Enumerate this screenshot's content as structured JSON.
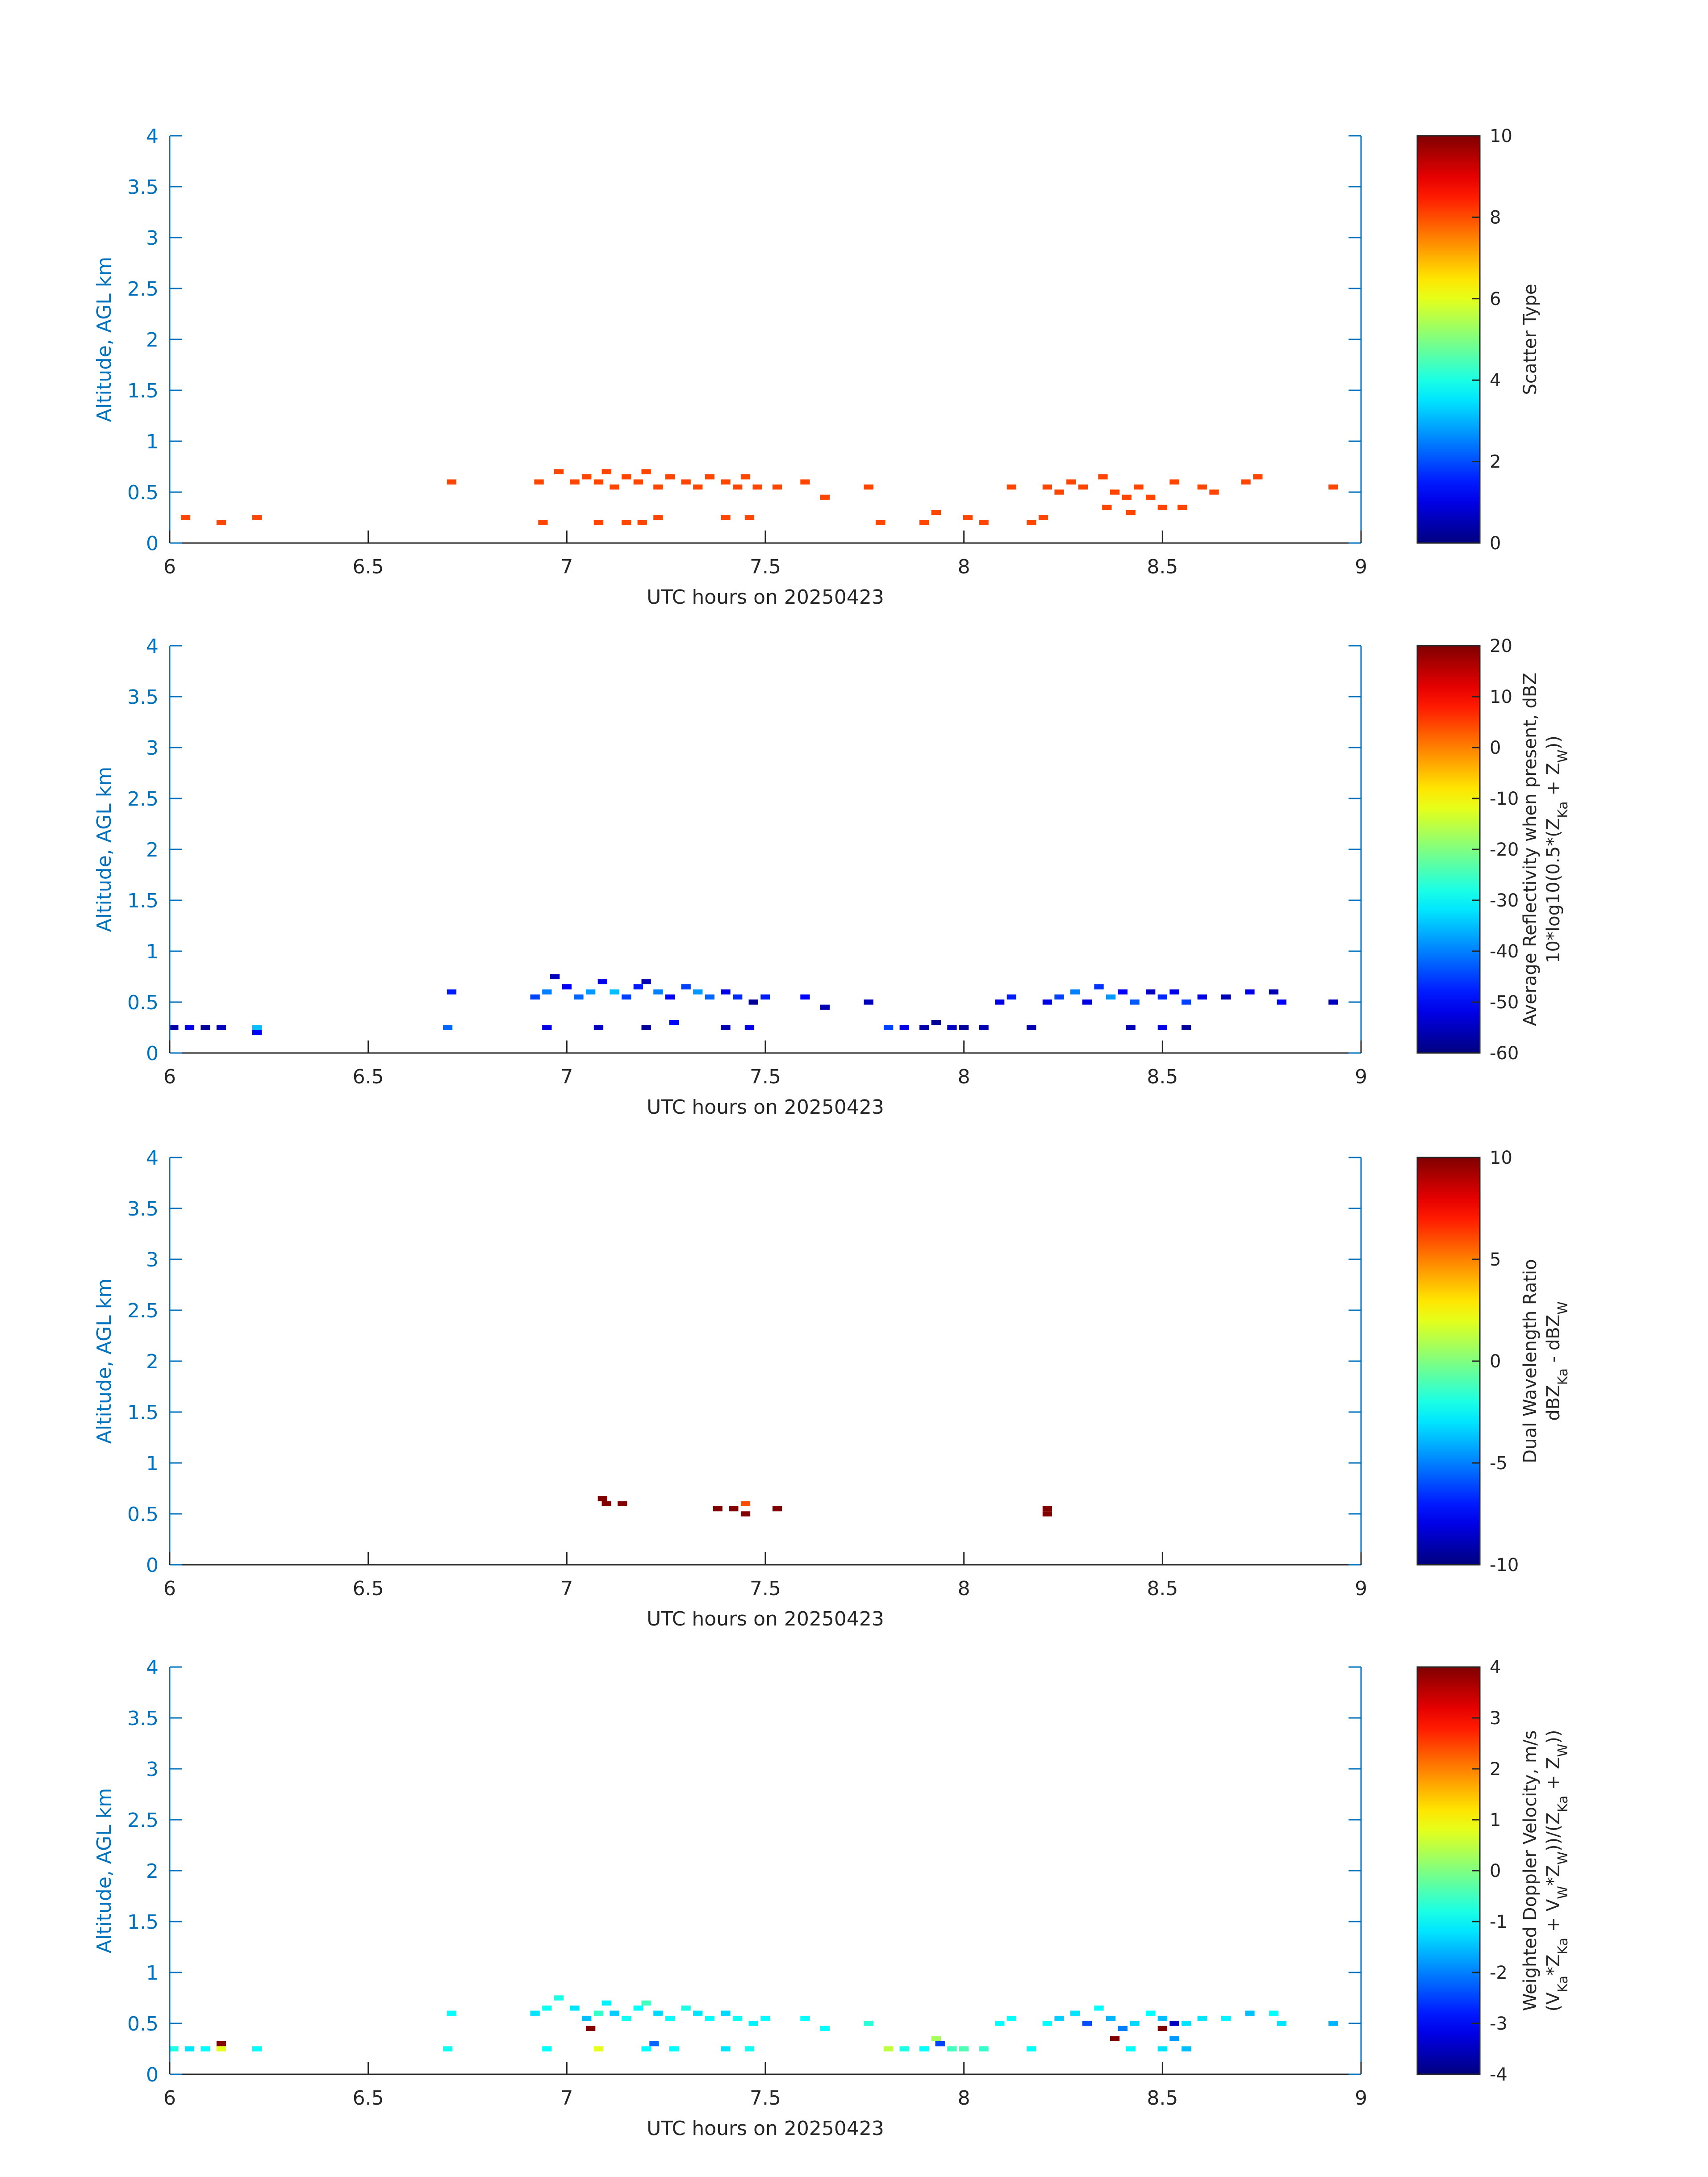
{
  "colors": {
    "axis": "#0072bd",
    "text": "#262626",
    "scatter_cells": "#ff4500"
  },
  "colormap": "jet",
  "chart_data": [
    {
      "type": "heatmap",
      "xlabel": "UTC hours on 20250423",
      "ylabel": "Altitude, AGL km",
      "xlim": [
        6,
        9
      ],
      "ylim": [
        0,
        4
      ],
      "xticks": [
        "6",
        "6.5",
        "7",
        "7.5",
        "8",
        "8.5",
        "9"
      ],
      "yticks": [
        "0",
        "0.5",
        "1",
        "1.5",
        "2",
        "2.5",
        "3",
        "3.5",
        "4"
      ],
      "colorbar": {
        "label_lines": [
          "Scatter Type"
        ],
        "clim": [
          0,
          10
        ],
        "ticks": [
          "0",
          "2",
          "4",
          "6",
          "8",
          "10"
        ]
      },
      "cells": [
        [
          6.04,
          0.25,
          8
        ],
        [
          6.13,
          0.2,
          8
        ],
        [
          6.22,
          0.25,
          8
        ],
        [
          6.71,
          0.6,
          8
        ],
        [
          6.93,
          0.6,
          8
        ],
        [
          6.94,
          0.2,
          8
        ],
        [
          6.98,
          0.7,
          8
        ],
        [
          7.02,
          0.6,
          8
        ],
        [
          7.05,
          0.65,
          8
        ],
        [
          7.08,
          0.6,
          8
        ],
        [
          7.1,
          0.7,
          8
        ],
        [
          7.12,
          0.55,
          8
        ],
        [
          7.15,
          0.65,
          8
        ],
        [
          7.18,
          0.6,
          8
        ],
        [
          7.2,
          0.7,
          8
        ],
        [
          7.23,
          0.55,
          8
        ],
        [
          7.26,
          0.65,
          8
        ],
        [
          7.3,
          0.6,
          8
        ],
        [
          7.33,
          0.55,
          8
        ],
        [
          7.36,
          0.65,
          8
        ],
        [
          7.4,
          0.6,
          8
        ],
        [
          7.43,
          0.55,
          8
        ],
        [
          7.45,
          0.65,
          8
        ],
        [
          7.48,
          0.55,
          8
        ],
        [
          7.08,
          0.2,
          8
        ],
        [
          7.15,
          0.2,
          8
        ],
        [
          7.19,
          0.2,
          8
        ],
        [
          7.23,
          0.25,
          8
        ],
        [
          7.4,
          0.25,
          8
        ],
        [
          7.46,
          0.25,
          8
        ],
        [
          7.53,
          0.55,
          8
        ],
        [
          7.6,
          0.6,
          8
        ],
        [
          7.65,
          0.45,
          8
        ],
        [
          7.76,
          0.55,
          8
        ],
        [
          7.79,
          0.2,
          8
        ],
        [
          7.9,
          0.2,
          8
        ],
        [
          7.93,
          0.3,
          8
        ],
        [
          8.01,
          0.25,
          8
        ],
        [
          8.05,
          0.2,
          8
        ],
        [
          8.12,
          0.55,
          8
        ],
        [
          8.17,
          0.2,
          8
        ],
        [
          8.2,
          0.25,
          8
        ],
        [
          8.21,
          0.55,
          8
        ],
        [
          8.24,
          0.5,
          8
        ],
        [
          8.27,
          0.6,
          8
        ],
        [
          8.3,
          0.55,
          8
        ],
        [
          8.35,
          0.65,
          8
        ],
        [
          8.38,
          0.5,
          8
        ],
        [
          8.41,
          0.45,
          8
        ],
        [
          8.44,
          0.55,
          8
        ],
        [
          8.36,
          0.35,
          8
        ],
        [
          8.42,
          0.3,
          8
        ],
        [
          8.47,
          0.45,
          8
        ],
        [
          8.5,
          0.35,
          8
        ],
        [
          8.53,
          0.6,
          8
        ],
        [
          8.55,
          0.35,
          8
        ],
        [
          8.6,
          0.55,
          8
        ],
        [
          8.63,
          0.5,
          8
        ],
        [
          8.71,
          0.6,
          8
        ],
        [
          8.74,
          0.65,
          8
        ],
        [
          8.93,
          0.55,
          8
        ]
      ]
    },
    {
      "type": "heatmap",
      "xlabel": "UTC hours on 20250423",
      "ylabel": "Altitude, AGL km",
      "xlim": [
        6,
        9
      ],
      "ylim": [
        0,
        4
      ],
      "xticks": [
        "6",
        "6.5",
        "7",
        "7.5",
        "8",
        "8.5",
        "9"
      ],
      "yticks": [
        "0",
        "0.5",
        "1",
        "1.5",
        "2",
        "2.5",
        "3",
        "3.5",
        "4"
      ],
      "colorbar": {
        "label_lines": [
          "Average Reflectivity when present, dBZ",
          "10*log10(0.5*(Z",
          "Ka",
          " + Z",
          "W",
          "))"
        ],
        "clim": [
          -60,
          20
        ],
        "ticks": [
          "-60",
          "-50",
          "-40",
          "-30",
          "-20",
          "-10",
          "0",
          "10",
          "20"
        ]
      },
      "cells": [
        [
          6.01,
          0.25,
          -57
        ],
        [
          6.05,
          0.25,
          -52
        ],
        [
          6.09,
          0.25,
          -58
        ],
        [
          6.13,
          0.25,
          -55
        ],
        [
          6.22,
          0.25,
          -35
        ],
        [
          6.22,
          0.2,
          -50
        ],
        [
          6.71,
          0.6,
          -48
        ],
        [
          6.7,
          0.25,
          -42
        ],
        [
          6.92,
          0.55,
          -45
        ],
        [
          6.95,
          0.6,
          -40
        ],
        [
          6.95,
          0.25,
          -52
        ],
        [
          6.97,
          0.75,
          -55
        ],
        [
          7.0,
          0.65,
          -50
        ],
        [
          7.03,
          0.55,
          -42
        ],
        [
          7.06,
          0.6,
          -38
        ],
        [
          7.09,
          0.7,
          -52
        ],
        [
          7.12,
          0.6,
          -35
        ],
        [
          7.15,
          0.55,
          -45
        ],
        [
          7.18,
          0.65,
          -48
        ],
        [
          7.2,
          0.7,
          -56
        ],
        [
          7.23,
          0.6,
          -40
        ],
        [
          7.26,
          0.55,
          -50
        ],
        [
          7.3,
          0.65,
          -45
        ],
        [
          7.33,
          0.6,
          -38
        ],
        [
          7.36,
          0.55,
          -42
        ],
        [
          7.4,
          0.6,
          -52
        ],
        [
          7.43,
          0.55,
          -47
        ],
        [
          7.47,
          0.5,
          -58
        ],
        [
          7.5,
          0.55,
          -48
        ],
        [
          7.08,
          0.25,
          -55
        ],
        [
          7.2,
          0.25,
          -58
        ],
        [
          7.27,
          0.3,
          -50
        ],
        [
          7.4,
          0.25,
          -56
        ],
        [
          7.46,
          0.25,
          -52
        ],
        [
          7.6,
          0.55,
          -50
        ],
        [
          7.65,
          0.45,
          -56
        ],
        [
          7.76,
          0.5,
          -55
        ],
        [
          7.81,
          0.25,
          -45
        ],
        [
          7.85,
          0.25,
          -52
        ],
        [
          7.9,
          0.25,
          -57
        ],
        [
          7.93,
          0.3,
          -58
        ],
        [
          7.97,
          0.25,
          -55
        ],
        [
          8.0,
          0.25,
          -58
        ],
        [
          8.05,
          0.25,
          -56
        ],
        [
          8.09,
          0.5,
          -52
        ],
        [
          8.12,
          0.55,
          -48
        ],
        [
          8.17,
          0.25,
          -56
        ],
        [
          8.21,
          0.5,
          -52
        ],
        [
          8.24,
          0.55,
          -45
        ],
        [
          8.28,
          0.6,
          -40
        ],
        [
          8.31,
          0.5,
          -52
        ],
        [
          8.34,
          0.65,
          -46
        ],
        [
          8.37,
          0.55,
          -38
        ],
        [
          8.4,
          0.6,
          -50
        ],
        [
          8.43,
          0.5,
          -43
        ],
        [
          8.47,
          0.6,
          -55
        ],
        [
          8.5,
          0.55,
          -47
        ],
        [
          8.53,
          0.6,
          -52
        ],
        [
          8.56,
          0.5,
          -45
        ],
        [
          8.42,
          0.25,
          -56
        ],
        [
          8.5,
          0.25,
          -52
        ],
        [
          8.56,
          0.25,
          -58
        ],
        [
          8.6,
          0.55,
          -52
        ],
        [
          8.66,
          0.55,
          -56
        ],
        [
          8.72,
          0.6,
          -52
        ],
        [
          8.78,
          0.6,
          -56
        ],
        [
          8.8,
          0.5,
          -50
        ],
        [
          8.93,
          0.5,
          -55
        ]
      ]
    },
    {
      "type": "heatmap",
      "xlabel": "UTC hours on 20250423",
      "ylabel": "Altitude, AGL km",
      "xlim": [
        6,
        9
      ],
      "ylim": [
        0,
        4
      ],
      "xticks": [
        "6",
        "6.5",
        "7",
        "7.5",
        "8",
        "8.5",
        "9"
      ],
      "yticks": [
        "0",
        "0.5",
        "1",
        "1.5",
        "2",
        "2.5",
        "3",
        "3.5",
        "4"
      ],
      "colorbar": {
        "label_lines": [
          "Dual Wavelength Ratio",
          "dBZ",
          "Ka",
          " - dBZ",
          "W"
        ],
        "clim": [
          -10,
          10
        ],
        "ticks": [
          "-10",
          "-5",
          "0",
          "5",
          "10"
        ]
      },
      "cells": [
        [
          7.09,
          0.65,
          10
        ],
        [
          7.1,
          0.6,
          10
        ],
        [
          7.14,
          0.6,
          10
        ],
        [
          7.38,
          0.55,
          10
        ],
        [
          7.42,
          0.55,
          10
        ],
        [
          7.45,
          0.6,
          6
        ],
        [
          7.45,
          0.5,
          10
        ],
        [
          7.53,
          0.55,
          10
        ],
        [
          8.21,
          0.55,
          10
        ],
        [
          8.21,
          0.5,
          10
        ]
      ]
    },
    {
      "type": "heatmap",
      "xlabel": "UTC hours on 20250423",
      "ylabel": "Altitude, AGL km",
      "xlim": [
        6,
        9
      ],
      "ylim": [
        0,
        4
      ],
      "xticks": [
        "6",
        "6.5",
        "7",
        "7.5",
        "8",
        "8.5",
        "9"
      ],
      "yticks": [
        "0",
        "0.5",
        "1",
        "1.5",
        "2",
        "2.5",
        "3",
        "3.5",
        "4"
      ],
      "colorbar": {
        "label_lines": [
          "Weighted Doppler Velocity, m/s",
          "(V",
          "Ka",
          "*Z",
          "Ka",
          " + V",
          "W",
          "*Z",
          "W",
          "))/(Z",
          "Ka",
          " + Z",
          "W",
          "))"
        ],
        "clim": [
          -4,
          4
        ],
        "ticks": [
          "-4",
          "-3",
          "-2",
          "-1",
          "0",
          "1",
          "2",
          "3",
          "4"
        ]
      },
      "cells": [
        [
          6.01,
          0.25,
          -0.8
        ],
        [
          6.05,
          0.25,
          -1.2
        ],
        [
          6.09,
          0.25,
          -1
        ],
        [
          6.13,
          0.3,
          4
        ],
        [
          6.13,
          0.25,
          0.8
        ],
        [
          6.22,
          0.25,
          -1
        ],
        [
          6.71,
          0.6,
          -1
        ],
        [
          6.7,
          0.25,
          -0.9
        ],
        [
          6.92,
          0.6,
          -1.2
        ],
        [
          6.95,
          0.65,
          -0.9
        ],
        [
          6.95,
          0.25,
          -1
        ],
        [
          6.98,
          0.75,
          -0.8
        ],
        [
          7.02,
          0.65,
          -1.2
        ],
        [
          7.05,
          0.55,
          -1.5
        ],
        [
          7.06,
          0.45,
          4
        ],
        [
          7.08,
          0.6,
          -0.6
        ],
        [
          7.1,
          0.7,
          -1.1
        ],
        [
          7.12,
          0.6,
          -1.4
        ],
        [
          7.15,
          0.55,
          -0.9
        ],
        [
          7.18,
          0.65,
          -1
        ],
        [
          7.2,
          0.7,
          -0.5
        ],
        [
          7.23,
          0.6,
          -1.3
        ],
        [
          7.26,
          0.55,
          -1
        ],
        [
          7.3,
          0.65,
          -0.8
        ],
        [
          7.33,
          0.6,
          -1.2
        ],
        [
          7.36,
          0.55,
          -1
        ],
        [
          7.4,
          0.6,
          -1.3
        ],
        [
          7.43,
          0.55,
          -0.9
        ],
        [
          7.47,
          0.5,
          -1.1
        ],
        [
          7.5,
          0.55,
          -1
        ],
        [
          7.08,
          0.25,
          0.8
        ],
        [
          7.2,
          0.25,
          -1
        ],
        [
          7.22,
          0.3,
          -2.2
        ],
        [
          7.27,
          0.25,
          -1
        ],
        [
          7.4,
          0.25,
          -1.2
        ],
        [
          7.46,
          0.25,
          -0.9
        ],
        [
          7.6,
          0.55,
          -1
        ],
        [
          7.65,
          0.45,
          -1
        ],
        [
          7.76,
          0.5,
          -0.7
        ],
        [
          7.81,
          0.25,
          0.5
        ],
        [
          7.85,
          0.25,
          -0.8
        ],
        [
          7.9,
          0.25,
          -1
        ],
        [
          7.93,
          0.35,
          0.3
        ],
        [
          7.94,
          0.3,
          -2.5
        ],
        [
          7.97,
          0.25,
          -0.5
        ],
        [
          8.0,
          0.25,
          -0.4
        ],
        [
          8.05,
          0.25,
          -0.6
        ],
        [
          8.09,
          0.5,
          -1
        ],
        [
          8.12,
          0.55,
          -1
        ],
        [
          8.17,
          0.25,
          -1
        ],
        [
          8.21,
          0.5,
          -1
        ],
        [
          8.24,
          0.55,
          -1.4
        ],
        [
          8.28,
          0.6,
          -1.2
        ],
        [
          8.31,
          0.5,
          -2.4
        ],
        [
          8.34,
          0.65,
          -1
        ],
        [
          8.37,
          0.55,
          -1.6
        ],
        [
          8.38,
          0.35,
          4
        ],
        [
          8.4,
          0.45,
          -2
        ],
        [
          8.43,
          0.5,
          -1.3
        ],
        [
          8.47,
          0.6,
          -1
        ],
        [
          8.5,
          0.45,
          4
        ],
        [
          8.5,
          0.55,
          -1.5
        ],
        [
          8.53,
          0.5,
          -3.5
        ],
        [
          8.53,
          0.35,
          -1.8
        ],
        [
          8.56,
          0.5,
          -1.2
        ],
        [
          8.42,
          0.25,
          -1
        ],
        [
          8.5,
          0.25,
          -1.2
        ],
        [
          8.56,
          0.25,
          -1.5
        ],
        [
          8.6,
          0.55,
          -1.2
        ],
        [
          8.66,
          0.55,
          -1.1
        ],
        [
          8.72,
          0.6,
          -1.5
        ],
        [
          8.78,
          0.6,
          -1
        ],
        [
          8.8,
          0.5,
          -1.2
        ],
        [
          8.93,
          0.5,
          -1.6
        ]
      ]
    }
  ]
}
